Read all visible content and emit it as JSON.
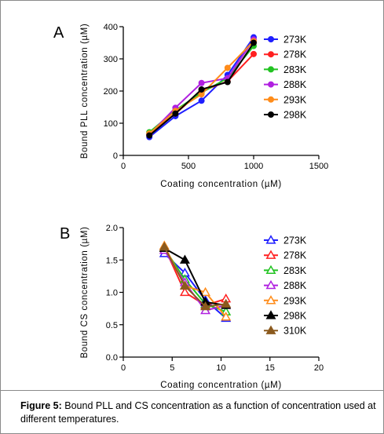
{
  "caption": {
    "label": "Figure 5:",
    "text": " Bound PLL and CS concentration as a function of concentration used at different temperatures."
  },
  "chart_data": [
    {
      "panel": "A",
      "type": "line",
      "marker": "filled-circle",
      "xlabel": "Coating concentration (µM)",
      "ylabel": "Bound PLL concentration (µM)",
      "xlim": [
        0,
        1500
      ],
      "ylim": [
        0,
        400
      ],
      "xticks": [
        0,
        500,
        1000,
        1500
      ],
      "yticks": [
        0,
        100,
        200,
        300,
        400
      ],
      "legend_position": "right",
      "x": [
        200,
        400,
        600,
        800,
        1000
      ],
      "series": [
        {
          "name": "273K",
          "color": "#1f1fff",
          "values": [
            57,
            122,
            170,
            250,
            367
          ]
        },
        {
          "name": "278K",
          "color": "#ff2020",
          "values": [
            65,
            130,
            200,
            230,
            315
          ]
        },
        {
          "name": "283K",
          "color": "#22c322",
          "values": [
            72,
            140,
            195,
            240,
            340
          ]
        },
        {
          "name": "288K",
          "color": "#b020e0",
          "values": [
            65,
            148,
            225,
            240,
            360
          ]
        },
        {
          "name": "293K",
          "color": "#ff8c1a",
          "values": [
            68,
            138,
            190,
            272,
            355
          ]
        },
        {
          "name": "298K",
          "color": "#000000",
          "values": [
            62,
            130,
            205,
            228,
            350
          ]
        }
      ]
    },
    {
      "panel": "B",
      "type": "line",
      "marker": "triangle",
      "xlabel": "Coating concentration (µM)",
      "ylabel": "Bound CS concentration (µM)",
      "xlim": [
        0,
        20
      ],
      "ylim": [
        0.0,
        2.0
      ],
      "xticks": [
        0,
        5,
        10,
        15,
        20
      ],
      "yticks": [
        "0.0",
        "0.5",
        "1.0",
        "1.5",
        "2.0"
      ],
      "legend_position": "right",
      "x": [
        4.2,
        6.3,
        8.4,
        10.5
      ],
      "series": [
        {
          "name": "273K",
          "color": "#1f1fff",
          "filled": false,
          "values": [
            1.6,
            1.3,
            0.88,
            0.6
          ]
        },
        {
          "name": "278K",
          "color": "#ff2020",
          "filled": false,
          "values": [
            1.7,
            1.0,
            0.8,
            0.9
          ]
        },
        {
          "name": "283K",
          "color": "#22c322",
          "filled": false,
          "values": [
            1.68,
            1.2,
            0.82,
            0.7
          ]
        },
        {
          "name": "288K",
          "color": "#b020e0",
          "filled": false,
          "values": [
            1.65,
            1.15,
            0.72,
            0.8
          ]
        },
        {
          "name": "293K",
          "color": "#ff8c1a",
          "filled": false,
          "values": [
            1.72,
            1.1,
            1.0,
            0.62
          ]
        },
        {
          "name": "298K",
          "color": "#000000",
          "filled": true,
          "values": [
            1.68,
            1.5,
            0.85,
            0.8
          ]
        },
        {
          "name": "310K",
          "color": "#8b5a1e",
          "filled": true,
          "values": [
            1.7,
            1.1,
            0.78,
            0.82
          ]
        }
      ]
    }
  ]
}
